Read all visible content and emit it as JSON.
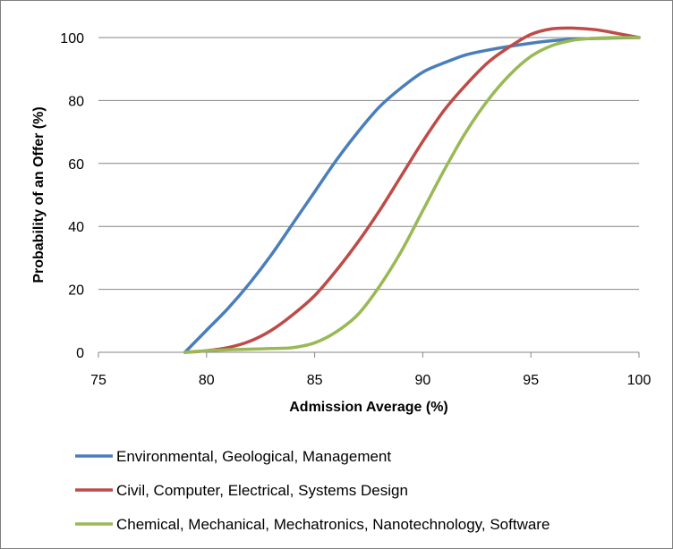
{
  "chart_data": {
    "type": "line",
    "title": "",
    "xlabel": "Admission Average (%)",
    "ylabel": "Probability of an Offer (%)",
    "xlim": [
      75,
      100
    ],
    "ylim": [
      0,
      100
    ],
    "x_ticks": [
      75,
      80,
      85,
      90,
      95,
      100
    ],
    "y_ticks": [
      0,
      20,
      40,
      60,
      80,
      100
    ],
    "grid": "horizontal",
    "legend_position": "bottom",
    "series": [
      {
        "name": "Environmental, Geological, Management",
        "color": "#4a7ebb",
        "x": [
          79,
          80,
          81,
          82,
          83,
          84,
          85,
          86,
          87,
          88,
          89,
          90,
          91,
          92,
          93,
          94,
          95,
          96,
          97,
          98,
          99,
          100
        ],
        "y": [
          0,
          7,
          14,
          22,
          31,
          41,
          51,
          61,
          70,
          78,
          84,
          89,
          92,
          94.5,
          96,
          97.2,
          98.2,
          99,
          99.5,
          99.7,
          99.9,
          100
        ]
      },
      {
        "name": "Civil, Computer, Electrical, Systems Design",
        "color": "#be4b48",
        "x": [
          79,
          80,
          81,
          82,
          83,
          84,
          85,
          86,
          87,
          88,
          89,
          90,
          91,
          92,
          93,
          94,
          95,
          96,
          97,
          98,
          99,
          100
        ],
        "y": [
          0,
          0.5,
          1.5,
          3.5,
          7,
          12,
          18,
          26,
          35,
          45,
          56,
          67,
          77,
          85,
          92,
          97,
          101,
          102.8,
          103,
          102.5,
          101.3,
          100
        ]
      },
      {
        "name": "Chemical, Mechanical, Mechatronics, Nanotechnology, Software",
        "color": "#98b954",
        "x": [
          79,
          80,
          81,
          82,
          83,
          84,
          85,
          86,
          87,
          88,
          89,
          90,
          91,
          92,
          93,
          94,
          95,
          96,
          97,
          98,
          99,
          100
        ],
        "y": [
          0,
          0.5,
          0.8,
          1.0,
          1.2,
          1.5,
          3,
          6.5,
          12,
          21,
          32,
          45,
          58,
          70,
          80,
          88,
          94,
          97.5,
          99.2,
          99.8,
          100,
          100
        ]
      }
    ]
  }
}
